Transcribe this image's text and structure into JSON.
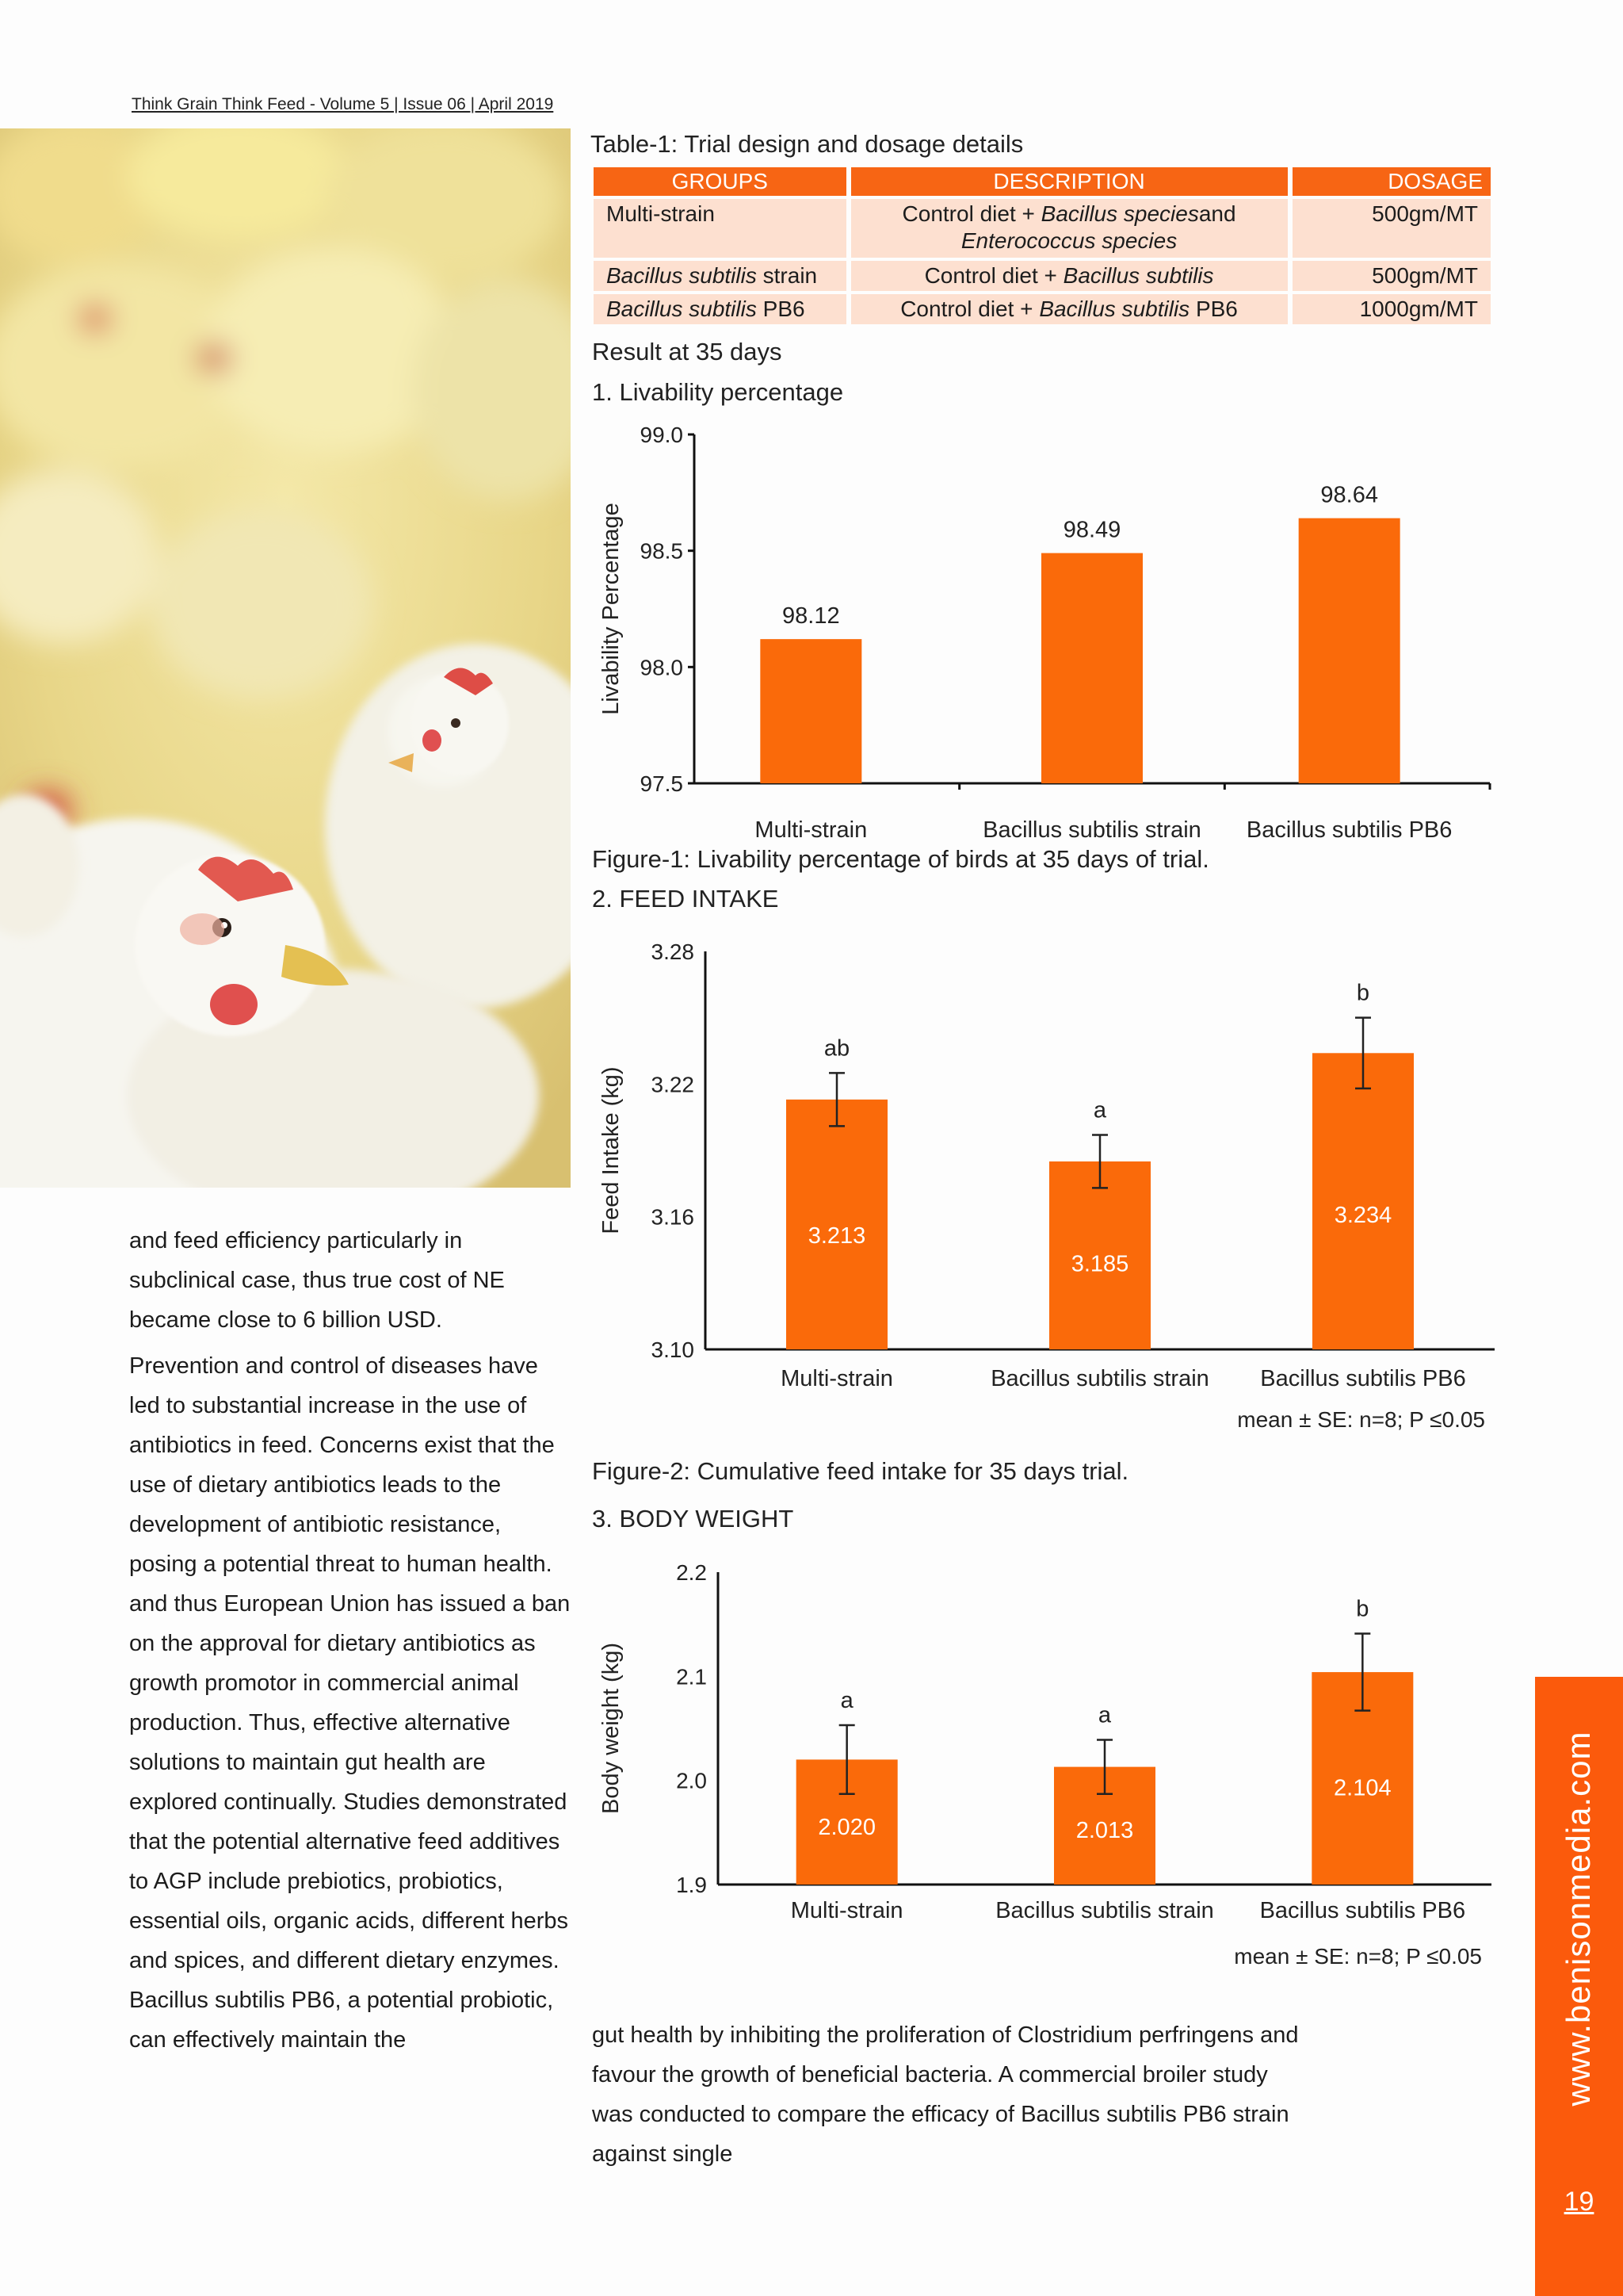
{
  "header": {
    "text": "Think Grain Think Feed - Volume 5 | Issue 06 | April 2019"
  },
  "table": {
    "title": "Table-1: Trial design and dosage details",
    "headers": [
      "GROUPS",
      "DESCRIPTION",
      "DOSAGE"
    ],
    "rows": [
      {
        "group": "Multi-strain",
        "desc_plain": "Control diet + ",
        "desc_italic": "Bacillus species",
        "desc_tail": "and",
        "desc_line2": "Enterococcus species",
        "dosage": "500gm/MT"
      },
      {
        "group_italic": "Bacillus subtilis",
        "group_tail": " strain",
        "desc_plain": "Control diet + ",
        "desc_italic": "Bacillus subtilis",
        "dosage": "500gm/MT"
      },
      {
        "group_italic": "Bacillus subtilis",
        "group_tail": " PB6",
        "desc_plain": "Control diet + ",
        "desc_italic": "Bacillus subtilis",
        "desc_tail": " PB6",
        "dosage": "1000gm/MT"
      }
    ]
  },
  "sections": {
    "result": "Result at 35 days",
    "livability": "1. Livability percentage",
    "fig1_caption": "Figure-1: Livability percentage of birds at 35 days of trial.",
    "feed_intake": "2. FEED INTAKE",
    "fig2_caption": "Figure-2: Cumulative feed intake for 35 days trial.",
    "body_weight": "3. BODY WEIGHT"
  },
  "chart_data": [
    {
      "type": "bar",
      "categories": [
        "Multi-strain",
        "Bacillus subtilis strain",
        "Bacillus subtilis PB6"
      ],
      "values": [
        98.12,
        98.49,
        98.64
      ],
      "value_labels": [
        "98.12",
        "98.49",
        "98.64"
      ],
      "ylabel": "Livability Percentage",
      "ylim": [
        97.5,
        99.0
      ],
      "yticks": [
        "97.5",
        "98.0",
        "98.5",
        "99.0"
      ],
      "color": "#fa6a0a",
      "grid": false
    },
    {
      "type": "bar",
      "categories": [
        "Multi-strain",
        "Bacillus subtilis strain",
        "Bacillus subtilis PB6"
      ],
      "values": [
        3.213,
        3.185,
        3.234
      ],
      "value_labels": [
        "3.213",
        "3.185",
        "3.234"
      ],
      "errors": [
        0.012,
        0.012,
        0.016
      ],
      "significance": [
        "ab",
        "a",
        "b"
      ],
      "ylabel": "Feed Intake (kg)",
      "ylim": [
        3.1,
        3.28
      ],
      "yticks": [
        "3.10",
        "3.16",
        "3.22",
        "3.28"
      ],
      "note": "mean ± SE: n=8; P ≤0.05",
      "color": "#fa6a0a",
      "grid": false
    },
    {
      "type": "bar",
      "categories": [
        "Multi-strain",
        "Bacillus subtilis strain",
        "Bacillus subtilis PB6"
      ],
      "values": [
        2.02,
        2.013,
        2.104
      ],
      "value_labels": [
        "2.020",
        "2.013",
        "2.104"
      ],
      "errors": [
        0.033,
        0.026,
        0.037
      ],
      "significance": [
        "a",
        "a",
        "b"
      ],
      "ylabel": "Body weight (kg)",
      "ylim": [
        1.9,
        2.2
      ],
      "yticks": [
        "1.9",
        "2.0",
        "2.1",
        "2.2"
      ],
      "note": "mean ± SE: n=8; P ≤0.05",
      "color": "#fa6a0a",
      "grid": false
    }
  ],
  "left_text": {
    "p1": "and feed efficiency particularly in subclinical case, thus true cost of NE became close to 6 billion USD.",
    "p2": "Prevention and control of diseases have led to substantial increase in the use of antibiotics in feed. Concerns exist that the use of dietary antibiotics leads to the development of antibiotic resistance, posing a potential threat to human health. and thus European Union has issued a ban on the approval for dietary antibiotics as growth promotor in commercial animal production. Thus, effective alternative solutions to maintain gut health are explored continually. Studies demonstrated that the potential alternative feed additives to AGP include prebiotics, probiotics, essential oils, organic acids, different herbs and spices, and different dietary enzymes. Bacillus subtilis PB6, a potential probiotic, can effectively maintain the"
  },
  "bottom_text": "gut health by inhibiting the proliferation of Clostridium perfringens and favour the growth of beneficial bacteria. A commercial broiler study was conducted to compare the efficacy of Bacillus subtilis PB6 strain against single",
  "side": {
    "url": "www.benisonmedia.com",
    "page_number": "19"
  }
}
